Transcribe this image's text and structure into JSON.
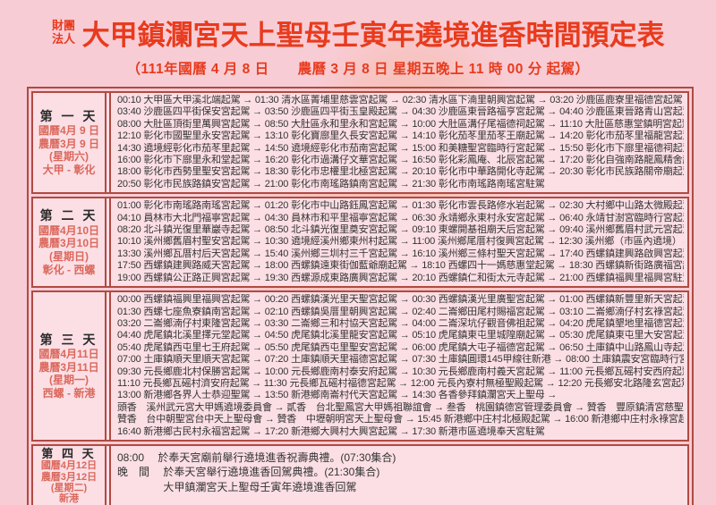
{
  "colors": {
    "page_bg": "#f8ccd5",
    "cell_bg": "#fbdfe5",
    "border": "#b04a42",
    "title_red": "#e83b1d",
    "date_red": "#db685c",
    "text": "#333333"
  },
  "org": "財團法人",
  "title": "大甲鎮瀾宮天上聖母壬寅年遶境進香時間預定表",
  "subtitle": "（111年國曆 4 月 8 日　　農曆 3 月 8 日 星期五晚上 11 時 00 分 起駕）",
  "days": [
    {
      "name": "第 一 天",
      "solar": "國曆4月 9 日",
      "lunar": "農曆3月 9 日",
      "weekday": "(星期六)",
      "route": "大甲 - 彰化",
      "rows": [
        "00:10 大甲區大甲溪北端起駕 → 01:30 清水區菁埔里慈雲宮起駕 → 02:30 清水區下湳里朝興宮起駕 → 03:20 沙鹿區鹿寮里福德宮起駕 →",
        "03:40 沙鹿區四平街保安宮起駕 → 03:50 沙鹿區四平街玉皇殿起駕 → 04:30 沙鹿區東晉路福亨宮起駕 → 04:40 沙鹿區東晉路青山宮起駕 →",
        "08:00 大肚區頂街里萬興宮起駕 → 08:50 大肚區永和里永和宮起駕 → 10:00 大肚區溝仔尾福德祠起駕 → 11:10 大肚區慈惠堂鎮明宮起駕 →",
        "12:10 彰化市國聖里永安宮起駕 → 13:10 彰化寶廍里久長安宮起駕 → 14:10 彰化茄苳里茄苳王廟起駕 → 14:20 彰化市茄苳里福龍宮起駕 →",
        "14:30 遶境經彰化市茄苳里起駕 → 14:50 遶境經彰化市茄南宮起駕 → 15:00 和美糖聖宮臨時行宮起駕 → 15:50 彰化市下廍里福德祠起駕 →",
        "16:00 彰化市下廍里永和堂起駕 → 16:20 彰化市過溝仔文華宮起駕 → 16:50 彰化彩鳳庵、北辰宮起駕 → 17:20 彰化自強南路龍鳳精舍起駕 →",
        "18:00 彰化市西勢里聖安宮起駕 → 18:30 彰化市忠權里北極宮起駕 → 20:10 彰化市中華路開化寺起駕 → 20:30 彰化市民族路關帝廟起駕 →",
        "20:50 彰化市民族路鎮安宮起駕 → 21:00 彰化市南瑤路鎮南宮起駕 → 21:30 彰化市南瑤路南瑤宮駐駕"
      ]
    },
    {
      "name": "第 二 天",
      "solar": "國曆4月10日",
      "lunar": "農曆3月10日",
      "weekday": "(星期日)",
      "route": "彰化 - 西螺",
      "rows": [
        "01:00 彰化市南瑤路南瑤宮起駕 → 01:20 彰化市中山路鈺鳳宮起駕 → 01:30 彰化市雲長路修水岩起駕 → 02:30 大村鄉中山路太微殿起駕 →",
        "04:10 員林市大北門福寧宮起駕 → 04:30 員林市和平里福寧宮起駕 → 06:30 永靖鄉永東村永安宮起駕 → 06:40 永靖甘澍宮臨時行宮起駕 →",
        "08:20 北斗鎮光復里華巖寺起駕 → 08:50 北斗鎮光復里奠安宮起駕 → 09:10 東螺開基祖廟天后宮起駕 → 09:40 溪州鄉舊眉村武元宮起駕 →",
        "10:10 溪州鄉舊眉村聖安宮起駕 → 10:30 遶境經溪州鄉東州村起駕 → 11:00 溪州鄉尾厝村復興宮起駕 → 12:30 溪州鄉（市區內遶境）→",
        "13:30 溪州鄉瓦厝村后天宮起駕 → 15:40 溪州鄉三圳村三千宮起駕 → 16:10 溪州鄉三條村聖天宮起駕 → 17:40 西螺鎮建興路啟興宮起駕 →",
        "17:50 西螺鎮建興路威天宮起駕 → 18:00 西螺鎮遠東街伽藍爺廟起駕 → 18:10 西螺四十一媽慈惠堂起駕 → 18:30 西螺鎮新街路廣福宮起駕 →",
        "19:00 西螺鎮公正路正興宮起駕 → 19:30 西螺源成東路廣興宮起駕 → 20:10 西螺鎮仁和街太元寺起駕 → 21:00 西螺鎮福興里福興宮駐駕"
      ]
    },
    {
      "name": "第 三 天",
      "solar": "國曆4月11日",
      "lunar": "農曆3月11日",
      "weekday": "(星期一)",
      "route": "西螺 - 新港",
      "rows": [
        "00:00 西螺鎮福興里福興宮起駕 → 00:20 西螺鎮漢光里天聖宮起駕 → 00:30 西螺鎮漢光里廣聖宮起駕 → 01:00 西螺鎮新豐里新天宮起駕 →",
        "01:30 西螺七座魚寮鎮南宮起駕 → 02:10 西螺鎮吳厝里朝興宮起駕 → 02:40 二崙鄉田尾村賜福宮起駕 → 03:10 二崙鄉湳仔村玄祿宮起駕 →",
        "03:20 二崙鄉湳仔村東隆宮起駕 → 03:30 二崙鄉三和村協天宮起駕 → 04:00 二崙深坑仔觀音佛祖起駕 → 04:20 虎尾鎮墾地里福德宮起駕 →",
        "04:40 虎尾鎮北溪里擇元堂起駕 → 04:50 虎尾鎮北溪里龍安宮起駕 → 05:10 虎尾鎮東屯里城隍廟起駕 → 05:30 虎尾鎮東屯里大安宮起駕 →",
        "05:40 虎尾鎮西屯里七王府起駕 → 05:50 虎尾鎮西屯里聖安宮起駕 → 06:00 虎尾鎮大屯子福德宮起駕 → 06:50 土庫鎮中山路鳳山寺起駕 →",
        "07:00 土庫鎮順天里順天宮起駕 → 07:20 土庫鎮順天里福德宮起駕 → 07:30 土庫鎮圓環145甲線往新港 → 08:00 土庫鎮震安宮臨時行宮起駕 →",
        "09:30 元長鄉鹿北村保勝宮起駕 → 10:00 元長鄉鹿南村泰安府起駕 → 10:30 元長鄉鹿南村義天宮起駕 → 11:00 元長鄉瓦磘村安西府起駕 →",
        "11:10 元長鄉瓦磘村濟安府起駕 → 11:30 元長鄉瓦磘村福德宮起駕 → 12:00 元長內寮村無極聖殿起駕 → 12:20 元長鄉安北路隆玄宮起駕 →",
        "13:00 新港鄉各界人士恭迎聖駕 → 13:50 新港鄉南崙村代天宮起駕 → 14:30 各香參拜鎮瀾宮天上聖母 →",
        "頭香　溪州武元宮大甲媽遶境委員會 → 貳香　台北聖鳳宮大甲媽祖聯誼會 → 叁香　桃園鎮德宮管理委員會 → 贊香　豐原鎮清宮慈聖天上聖母會 →",
        "贊香　台中朝聖宮台中天上聖母會 → 贊香　中壢朝明宮天上聖母會 → 15:45 新港鄉中庄村北極殿起駕 → 16:00 新港鄉中庄村永祿宮起駕 →",
        "16:40 新港鄉古民村永福宮起駕 → 17:20 新港鄉大興村大興宮起駕 → 17:30 新港市區遶境奉天宮駐駕"
      ]
    },
    {
      "name": "第 四 天",
      "solar": "國曆4月12日",
      "lunar": "農曆3月12日",
      "weekday": "(星期二)",
      "route": "新港",
      "rows": [
        "08:00　 於奉天宮廟前舉行遶境進香祝壽典禮。(07:30集合)",
        "晚　間　 於奉天宮舉行遶境進香回駕典禮。(21:30集合)",
        "　　　　 大甲鎮瀾宮天上聖母壬寅年遶境進香回駕"
      ]
    }
  ]
}
